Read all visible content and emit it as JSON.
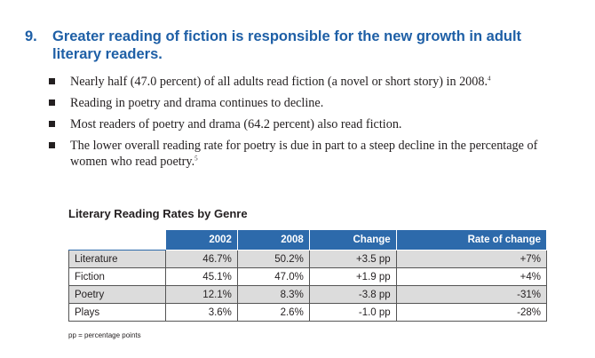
{
  "heading": {
    "number": "9.",
    "text": "Greater reading of fiction is responsible for the new growth in adult literary readers."
  },
  "bullets": [
    {
      "text": "Nearly half (47.0 percent) of all adults read fiction (a novel or short story) in 2008.",
      "sup": "4"
    },
    {
      "text": "Reading in poetry and drama continues to decline.",
      "sup": ""
    },
    {
      "text": "Most readers of poetry and drama (64.2 percent) also read fiction.",
      "sup": ""
    },
    {
      "text": "The lower overall reading rate for poetry is due in part to a steep decline in the percentage of women who read poetry.",
      "sup": "5"
    }
  ],
  "table": {
    "title": "Literary Reading Rates by Genre",
    "headers": [
      "",
      "2002",
      "2008",
      "Change",
      "Rate of change"
    ],
    "rows": [
      {
        "genre": "Literature",
        "y2002": "46.7%",
        "y2008": "50.2%",
        "change": "+3.5 pp",
        "rate": "+7%"
      },
      {
        "genre": "Fiction",
        "y2002": "45.1%",
        "y2008": "47.0%",
        "change": "+1.9 pp",
        "rate": "+4%"
      },
      {
        "genre": "Poetry",
        "y2002": "12.1%",
        "y2008": "8.3%",
        "change": "-3.8 pp",
        "rate": "-31%"
      },
      {
        "genre": "Plays",
        "y2002": "3.6%",
        "y2008": "2.6%",
        "change": "-1.0 pp",
        "rate": "-28%"
      }
    ],
    "footnote": "pp = percentage points"
  }
}
